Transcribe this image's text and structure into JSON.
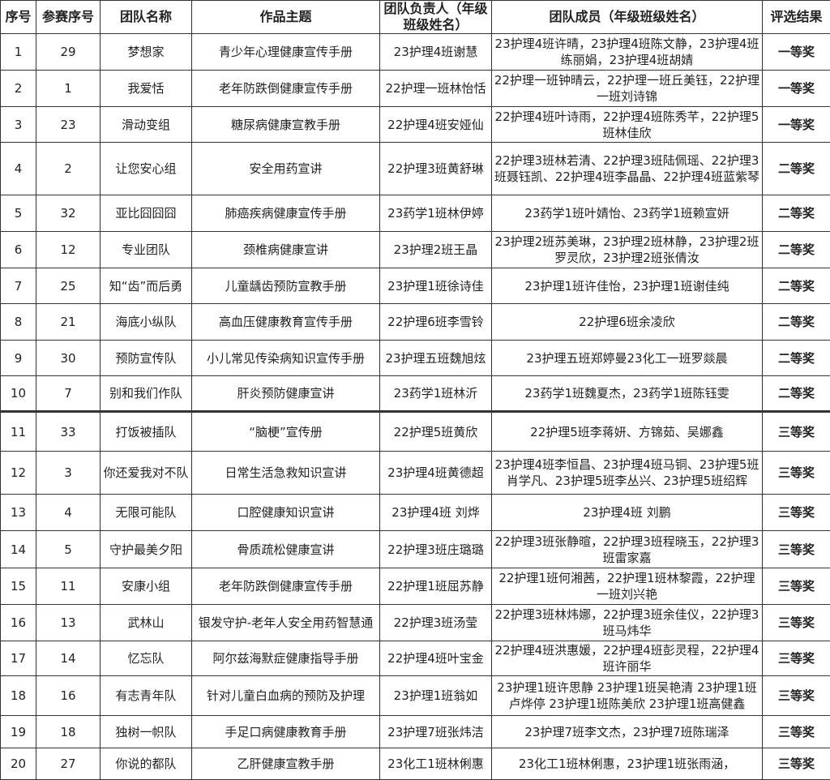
{
  "headers": [
    "序号",
    "参赛序号",
    "团队名称",
    "作品主题",
    "团队负责人（年级班级姓名）",
    "团队成员（年级班级姓名）",
    "评选结果"
  ],
  "rows": [
    {
      "no": "1",
      "entry": "29",
      "team": "梦想家",
      "topic": "青少年心理健康宣传手册",
      "leader": "23护理4班谢慧",
      "members": "23护理4班许晴，23护理4班陈文静，23护理4班练丽娟，23护理4班胡婧",
      "result": "一等奖"
    },
    {
      "no": "2",
      "entry": "1",
      "team": "我爱恬",
      "topic": "老年防跌倒健康宣传手册",
      "leader": "22护理一班林怡恬",
      "members": "22护理一班钟晴云，22护理一班丘美钰，22护理一班刘诗锦",
      "result": "一等奖"
    },
    {
      "no": "3",
      "entry": "23",
      "team": "滑动变组",
      "topic": "糖尿病健康宣教手册",
      "leader": "22护理4班安娅仙",
      "members": "22护理4班叶诗雨，22护理4班陈秀芊，22护理5班林佳欣",
      "result": "一等奖"
    },
    {
      "no": "4",
      "entry": "2",
      "team": "让您安心组",
      "topic": "安全用药宣讲",
      "leader": "22护理3班黄舒琳",
      "members": "22护理3班林若清、22护理3班陆佩瑶、22护理3班聂钰凯、22护理4班李晶晶、22护理4班蓝紫琴",
      "result": "二等奖"
    },
    {
      "no": "5",
      "entry": "32",
      "team": "亚比囧囧囧",
      "topic": "肺癌疾病健康宣传手册",
      "leader": "23药学1班林伊婷",
      "members": "23药学1班叶婧怡、23药学1班赖宣妍",
      "result": "二等奖"
    },
    {
      "no": "6",
      "entry": "12",
      "team": "专业团队",
      "topic": "颈椎病健康宣讲",
      "leader": "23护理2班王晶",
      "members": "23护理2班苏美琳，23护理2班林静，23护理2班罗灵欣，23护理2班张倩汝",
      "result": "二等奖"
    },
    {
      "no": "7",
      "entry": "25",
      "team": "知“齿”而后勇",
      "topic": "儿童龋齿预防宣教手册",
      "leader": "23护理1班徐诗佳",
      "members": "23护理1班许佳怡，23护理1班谢佳纯",
      "result": "二等奖"
    },
    {
      "no": "8",
      "entry": "21",
      "team": "海底小纵队",
      "topic": "高血压健康教育宣传手册",
      "leader": "22护理6班李雪铃",
      "members": "22护理6班余凌欣",
      "result": "二等奖"
    },
    {
      "no": "9",
      "entry": "30",
      "team": "预防宣传队",
      "topic": "小儿常见传染病知识宣传手册",
      "leader": "23护理五班魏旭炫",
      "members": "23护理五班郑婷曼23化工一班罗燚晨",
      "result": "二等奖"
    },
    {
      "no": "10",
      "entry": "7",
      "team": "别和我们作队",
      "topic": "肝炎预防健康宣讲",
      "leader": "23药学1班林沂",
      "members": "23药学1班魏夏杰，23药学1班陈钰雯",
      "result": "二等奖"
    },
    {
      "no": "11",
      "entry": "33",
      "team": "打饭被插队",
      "topic": "“脑梗”宣传册",
      "leader": "22护理5班黄欣",
      "members": "22护理5班李蒋妍、方锦茹、吴娜鑫",
      "result": "三等奖"
    },
    {
      "no": "12",
      "entry": "3",
      "team": "你还爱我对不队",
      "topic": "日常生活急救知识宣讲",
      "leader": "23护理4班黄德超",
      "members": "23护理4班李恒昌、23护理4班马铜、23护理5班肖学凡、23护理5班李丛兴、23护理5班绍辉",
      "result": "三等奖"
    },
    {
      "no": "13",
      "entry": "4",
      "team": "无限可能队",
      "topic": "口腔健康知识宣讲",
      "leader": "23护理4班 刘烨",
      "members": "23护理4班 刘鹏",
      "result": "三等奖"
    },
    {
      "no": "14",
      "entry": "5",
      "team": "守护最美夕阳",
      "topic": "骨质疏松健康宣讲",
      "leader": "22护理3班庄璐璐",
      "members": "22护理3班张静暄，22护理3班程晓玉，22护理3班雷家嘉",
      "result": "三等奖"
    },
    {
      "no": "15",
      "entry": "11",
      "team": "安康小组",
      "topic": "老年防跌倒健康宣传手册",
      "leader": "22护理1班屈苏静",
      "members": "22护理1班何湘茜，22护理1班林黎霞，22护理一班刘兴艳",
      "result": "三等奖"
    },
    {
      "no": "16",
      "entry": "13",
      "team": "武林山",
      "topic": "银发守护-老年人安全用药智慧通",
      "leader": "22护理3班汤莹",
      "members": "22护理3班林炜娜，22护理3班余佳仪，22护理3班马炜华",
      "result": "三等奖"
    },
    {
      "no": "17",
      "entry": "14",
      "team": "忆忘队",
      "topic": "阿尔兹海默症健康指导手册",
      "leader": "22护理4班叶宝金",
      "members": "22护理4班洪惠媛，22护理4班彭灵程，22护理4班许丽华",
      "result": "三等奖"
    },
    {
      "no": "18",
      "entry": "16",
      "team": "有志青年队",
      "topic": "针对儿童白血病的预防及护理",
      "leader": "23护理1班翁如",
      "members": "23护理1班许思静 23护理1班吴艳清 23护理1班卢烨停 23护理1班陈美欣 23护理1班高健鑫",
      "result": "三等奖"
    },
    {
      "no": "19",
      "entry": "18",
      "team": "独树一帜队",
      "topic": "手足口病健康教育手册",
      "leader": "23护理7班张炜洁",
      "members": "23护理7班李文杰，23护理7班陈瑞泽",
      "result": "三等奖"
    },
    {
      "no": "20",
      "entry": "27",
      "team": "你说的都队",
      "topic": "乙肝健康宣教手册",
      "leader": "23化工1班林俐惠",
      "members": "23化工1班林俐惠，23护理1班张雨涵，",
      "result": "三等奖"
    }
  ]
}
